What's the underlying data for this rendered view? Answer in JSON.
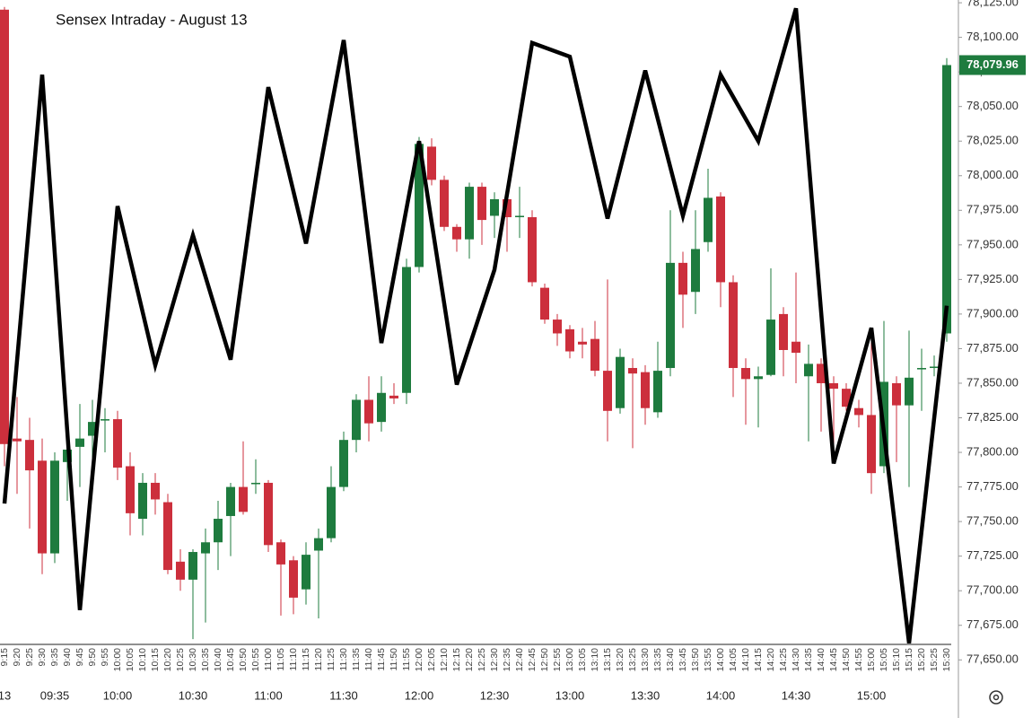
{
  "chart_data": {
    "type": "candlestick",
    "title": "Sensex Intraday - August 13",
    "categories": [
      "9:15",
      "9:20",
      "9:25",
      "9:30",
      "9:35",
      "9:40",
      "9:45",
      "9:50",
      "9:55",
      "10:00",
      "10:05",
      "10:10",
      "10:15",
      "10:20",
      "10:25",
      "10:30",
      "10:35",
      "10:40",
      "10:45",
      "10:50",
      "10:55",
      "11:00",
      "11:05",
      "11:10",
      "11:15",
      "11:20",
      "11:25",
      "11:30",
      "11:35",
      "11:40",
      "11:45",
      "11:50",
      "11:55",
      "12:00",
      "12:05",
      "12:10",
      "12:15",
      "12:20",
      "12:25",
      "12:30",
      "12:35",
      "12:40",
      "12:45",
      "12:50",
      "12:55",
      "13:00",
      "13:05",
      "13:10",
      "13:15",
      "13:20",
      "13:25",
      "13:30",
      "13:35",
      "13:40",
      "13:45",
      "13:50",
      "13:55",
      "14:00",
      "14:05",
      "14:10",
      "14:15",
      "14:20",
      "14:25",
      "14:30",
      "14:35",
      "14:40",
      "14:45",
      "14:50",
      "14:55",
      "15:00",
      "15:05",
      "15:10",
      "15:15",
      "15:20",
      "15:25",
      "15:30"
    ],
    "open": [
      78120,
      77810,
      77809,
      77794,
      77727,
      77793,
      77804,
      77812,
      77823,
      77824,
      77790,
      77752,
      77778,
      77764,
      77721,
      77708,
      77727,
      77735,
      77754,
      77775,
      77777,
      77778,
      77735,
      77722,
      77701,
      77729,
      77738,
      77775,
      77809,
      77838,
      77822,
      77841,
      77843,
      77934,
      78021,
      77997,
      77963,
      77954,
      77992,
      77971,
      77983,
      77970,
      77970,
      77919,
      77896,
      77889,
      77880,
      77882,
      77859,
      77832,
      77861,
      77858,
      77829,
      77861,
      77937,
      77916,
      77952,
      77985,
      77923,
      77861,
      77853,
      77856,
      77900,
      77880,
      77855,
      77864,
      77850,
      77846,
      77832,
      77827,
      77790,
      77850,
      77834,
      77860,
      77861,
      77886
    ],
    "high": [
      78122,
      77840,
      77825,
      77810,
      77800,
      77830,
      77835,
      77838,
      77832,
      77830,
      77800,
      77785,
      77785,
      77770,
      77730,
      77730,
      77745,
      77765,
      77778,
      77808,
      77795,
      77780,
      77737,
      77725,
      77735,
      77745,
      77790,
      77815,
      77842,
      77855,
      77855,
      77850,
      77940,
      78028,
      78027,
      78000,
      77965,
      77995,
      77995,
      77988,
      77985,
      77992,
      77975,
      77922,
      77900,
      77892,
      77890,
      77895,
      77925,
      77875,
      77868,
      77863,
      77880,
      77975,
      77945,
      77975,
      78005,
      77988,
      77928,
      77868,
      77862,
      77933,
      77905,
      77930,
      77878,
      77868,
      77855,
      77850,
      77838,
      77880,
      77895,
      77855,
      77888,
      77875,
      77870,
      78085
    ],
    "low": [
      77790,
      77770,
      77745,
      77712,
      77720,
      77765,
      77775,
      77790,
      77800,
      77780,
      77740,
      77740,
      77755,
      77712,
      77700,
      77665,
      77677,
      77715,
      77725,
      77755,
      77770,
      77728,
      77682,
      77683,
      77690,
      77680,
      77735,
      77772,
      77800,
      77808,
      77815,
      77835,
      77835,
      77930,
      77993,
      77960,
      77945,
      77940,
      77950,
      77955,
      77945,
      77955,
      77920,
      77893,
      77877,
      77868,
      77868,
      77855,
      77808,
      77828,
      77803,
      77820,
      77825,
      77855,
      77890,
      77900,
      77945,
      77905,
      77840,
      77820,
      77818,
      77855,
      77855,
      77850,
      77808,
      77815,
      77805,
      77830,
      77818,
      77770,
      77785,
      77793,
      77775,
      77830,
      77855,
      77880
    ],
    "close": [
      77806,
      77808,
      77787,
      77727,
      77794,
      77802,
      77810,
      77822,
      77824,
      77789,
      77756,
      77778,
      77766,
      77715,
      77708,
      77728,
      77735,
      77752,
      77775,
      77757,
      77778,
      77733,
      77719,
      77695,
      77726,
      77738,
      77775,
      77809,
      77838,
      77821,
      77843,
      77839,
      77934,
      78023,
      77997,
      77963,
      77954,
      77992,
      77968,
      77983,
      77970,
      77971,
      77923,
      77896,
      77886,
      77873,
      77878,
      77859,
      77830,
      77869,
      77857,
      77832,
      77859,
      77937,
      77914,
      77947,
      77984,
      77923,
      77861,
      77853,
      77855,
      77896,
      77874,
      77872,
      77864,
      77850,
      77846,
      77833,
      77827,
      77785,
      77851,
      77834,
      77854,
      77861,
      77862,
      78079.96
    ],
    "up_color": "#1e7b3e",
    "down_color": "#cc2f3c",
    "line": {
      "color": "#000000",
      "x": [
        "9:15",
        "9:30",
        "9:45",
        "10:00",
        "10:15",
        "10:30",
        "10:45",
        "11:00",
        "11:15",
        "11:30",
        "11:45",
        "12:00",
        "12:15",
        "12:30",
        "12:45",
        "13:00",
        "13:15",
        "13:30",
        "13:45",
        "14:00",
        "14:15",
        "14:30",
        "14:45",
        "15:00",
        "15:15",
        "15:30"
      ],
      "values": [
        77763,
        78073,
        77686,
        77978,
        77863,
        77957,
        77867,
        78064,
        77951,
        78098,
        77879,
        78025,
        77849,
        77932,
        78096,
        78086,
        77969,
        78076,
        77971,
        78073,
        78025,
        78121,
        77792,
        77890,
        77662,
        77906
      ]
    },
    "last_price": {
      "value": 78079.96,
      "label": "78,079.96"
    },
    "time_labels": [
      "13",
      "09:35",
      "10:00",
      "10:30",
      "11:00",
      "11:30",
      "12:00",
      "12:30",
      "13:00",
      "13:30",
      "14:00",
      "14:30",
      "15:00"
    ],
    "ylim": [
      77608,
      78127
    ],
    "yticks": [
      {
        "value": 77650,
        "label": "77,650.00"
      },
      {
        "value": 77675,
        "label": "77,675.00"
      },
      {
        "value": 77700,
        "label": "77,700.00"
      },
      {
        "value": 77725,
        "label": "77,725.00"
      },
      {
        "value": 77750,
        "label": "77,750.00"
      },
      {
        "value": 77775,
        "label": "77,775.00"
      },
      {
        "value": 77800,
        "label": "77,800.00"
      },
      {
        "value": 77825,
        "label": "77,825.00"
      },
      {
        "value": 77850,
        "label": "77,850.00"
      },
      {
        "value": 77875,
        "label": "77,875.00"
      },
      {
        "value": 77900,
        "label": "77,900.00"
      },
      {
        "value": 77925,
        "label": "77,925.00"
      },
      {
        "value": 77950,
        "label": "77,950.00"
      },
      {
        "value": 77975,
        "label": "77,975.00"
      },
      {
        "value": 78000,
        "label": "78,000.00"
      },
      {
        "value": 78025,
        "label": "78,025.00"
      },
      {
        "value": 78050,
        "label": "78,050.00"
      },
      {
        "value": 78075,
        "label": "78,075.00"
      },
      {
        "value": 78100,
        "label": "78,100.00"
      },
      {
        "value": 78125,
        "label": "78,125.00"
      }
    ]
  }
}
